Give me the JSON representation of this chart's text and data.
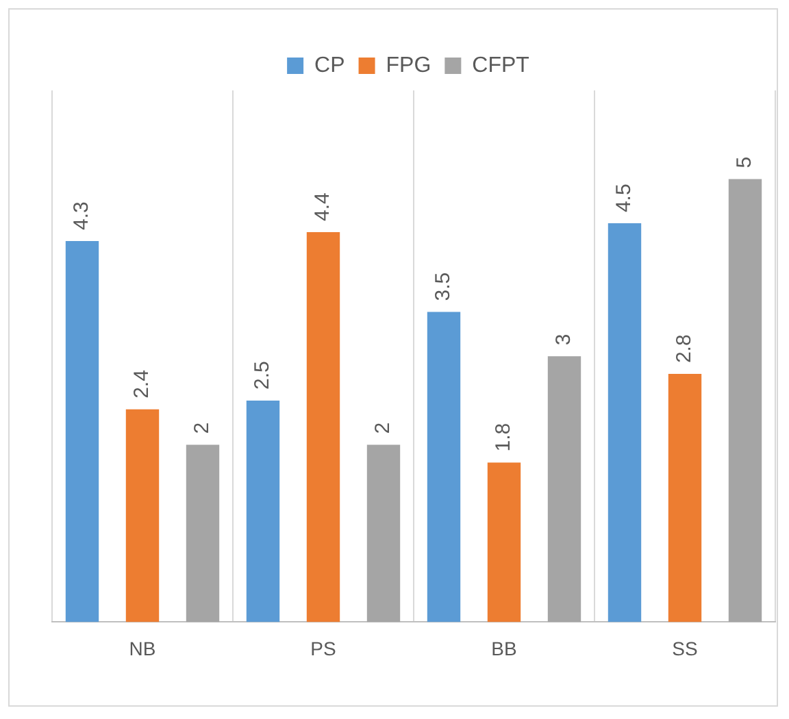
{
  "chart_data": {
    "type": "bar",
    "categories": [
      "NB",
      "PS",
      "BB",
      "SS"
    ],
    "series": [
      {
        "name": "CP",
        "color": "#5b9bd5",
        "values": [
          4.3,
          2.5,
          3.5,
          4.5
        ]
      },
      {
        "name": "FPG",
        "color": "#ed7d31",
        "values": [
          2.4,
          4.4,
          1.8,
          2.8
        ]
      },
      {
        "name": "CFPT",
        "color": "#a5a5a5",
        "values": [
          2,
          2,
          3,
          5
        ]
      }
    ],
    "ylim": [
      0,
      6
    ],
    "tick_labels": "x",
    "grid": "x",
    "legend": "top",
    "data_labels": true
  }
}
